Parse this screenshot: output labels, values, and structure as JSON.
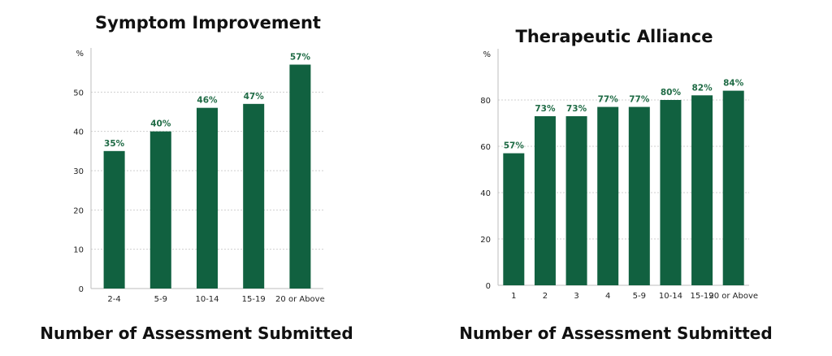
{
  "colors": {
    "bar": "#116140",
    "label": "#1f6b45",
    "grid": "#cfcfcf",
    "axis": "#bdbdbd"
  },
  "chart_data": [
    {
      "type": "bar",
      "title": "Symptom  Improvement",
      "xlabel": "Number of Assessment Submitted",
      "ylabel": "%",
      "categories": [
        "2-4",
        "5-9",
        "10-14",
        "15-19",
        "20 or Above"
      ],
      "values": [
        35,
        40,
        46,
        47,
        57
      ],
      "data_labels": [
        "35%",
        "40%",
        "46%",
        "47%",
        "57%"
      ],
      "yticks": [
        0,
        10,
        20,
        30,
        40,
        50
      ],
      "ylim": [
        0,
        60
      ],
      "grid": true
    },
    {
      "type": "bar",
      "title": "Therapeutic Alliance",
      "xlabel": "Number of Assessment Submitted",
      "ylabel": "%",
      "categories": [
        "1",
        "2",
        "3",
        "4",
        "5-9",
        "10-14",
        "15-19",
        "20 or Above"
      ],
      "values": [
        57,
        73,
        73,
        77,
        77,
        80,
        82,
        84
      ],
      "data_labels": [
        "57%",
        "73%",
        "73%",
        "77%",
        "77%",
        "80%",
        "82%",
        "84%"
      ],
      "yticks": [
        0,
        20,
        40,
        60,
        80
      ],
      "ylim": [
        0,
        100
      ],
      "grid": true
    }
  ]
}
